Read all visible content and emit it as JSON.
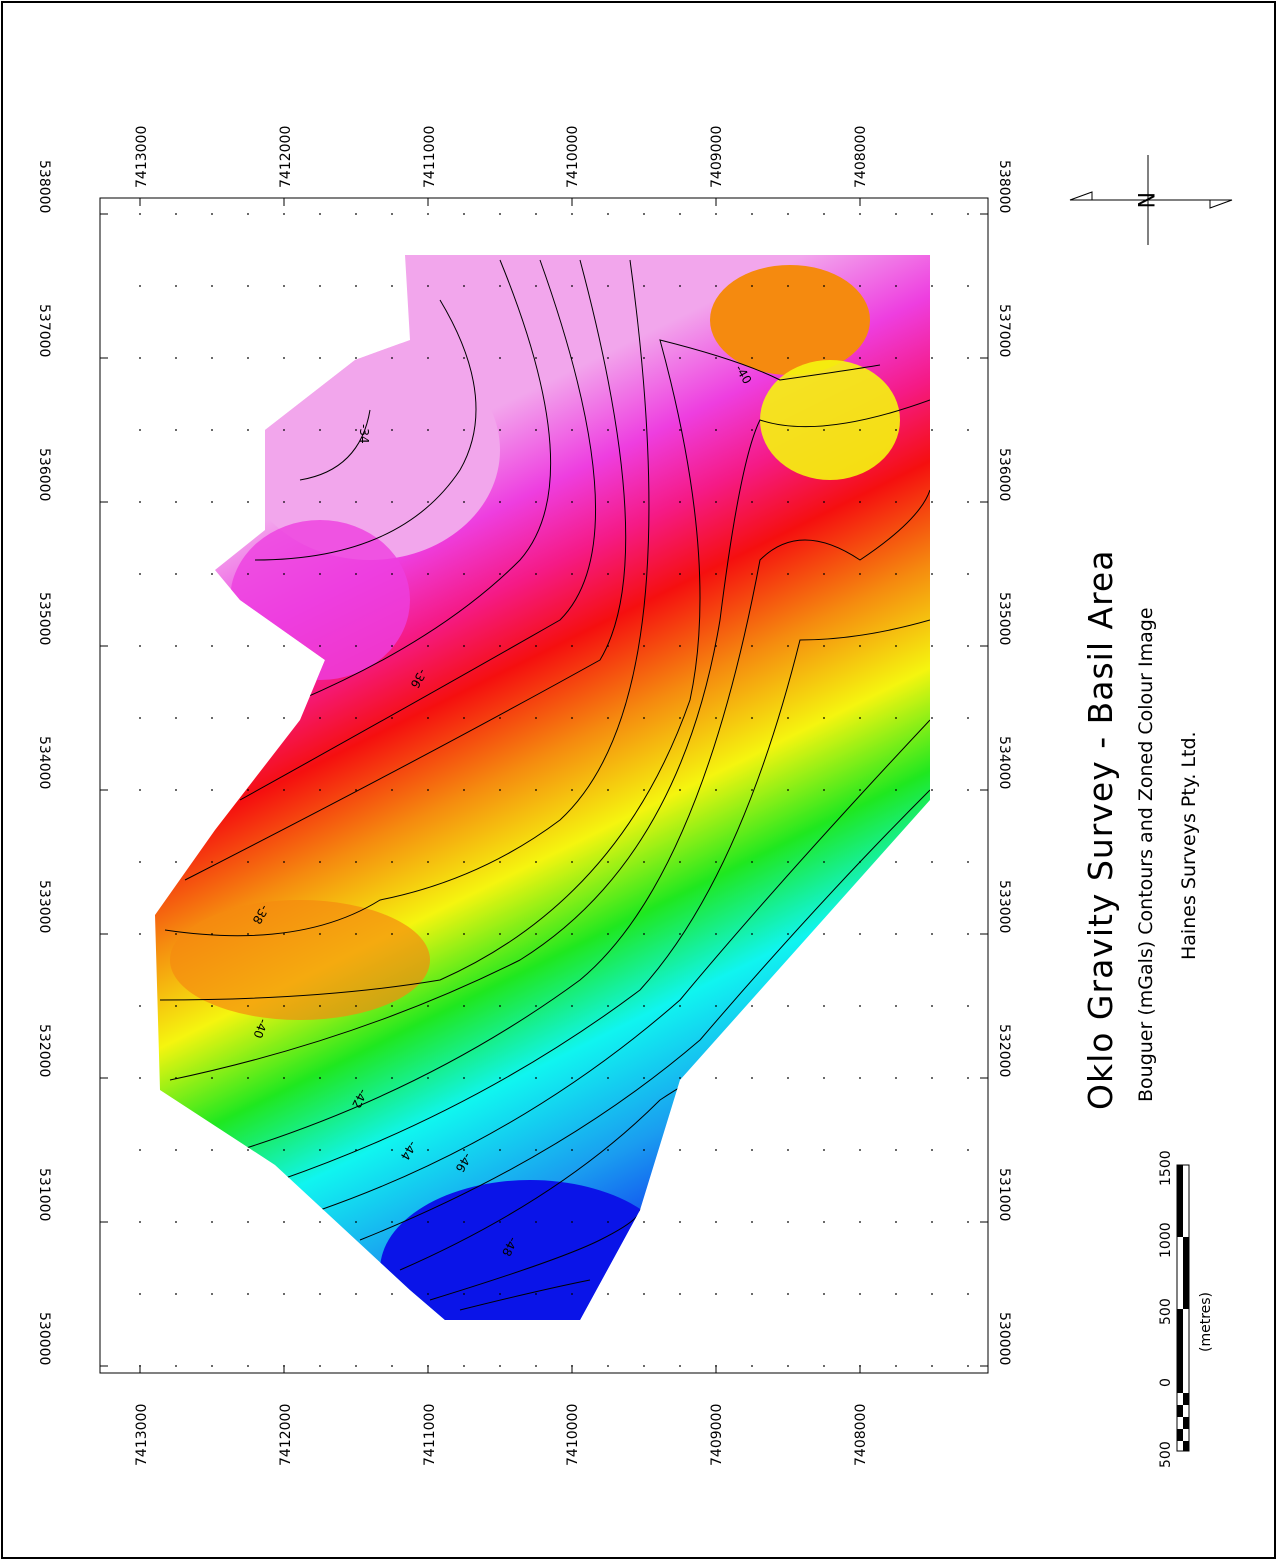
{
  "title": "Oklo Gravity Survey  -  Basil Area",
  "subtitle": "Bouguer (mGals) Contours and Zoned Colour Image",
  "company": "Haines Surveys Pty. Ltd.",
  "north_label": "N",
  "scale_bar": {
    "unit_label": "(metres)",
    "ticks": [
      "500",
      "0",
      "500",
      "1000",
      "1500"
    ]
  },
  "axes": {
    "easting_ticks": [
      "530000",
      "531000",
      "532000",
      "533000",
      "534000",
      "535000",
      "536000",
      "537000",
      "538000"
    ],
    "northing_ticks": [
      "7413000",
      "7412000",
      "7411000",
      "7410000",
      "7409000",
      "7408000"
    ]
  },
  "contour_labels": [
    "-34",
    "-36",
    "-38",
    "-40",
    "-40",
    "-42",
    "-44",
    "-46",
    "-48"
  ],
  "colors": {
    "magenta_light": "#f2a6ec",
    "magenta": "#ee3ee0",
    "pink": "#f51a86",
    "red": "#f50f0f",
    "orange": "#f58a0f",
    "yellow": "#f5f50f",
    "green": "#1fe81f",
    "cyan": "#10f5f0",
    "light_blue": "#1a9cf0",
    "blue": "#1040f0",
    "dark_blue": "#0a14e8"
  }
}
